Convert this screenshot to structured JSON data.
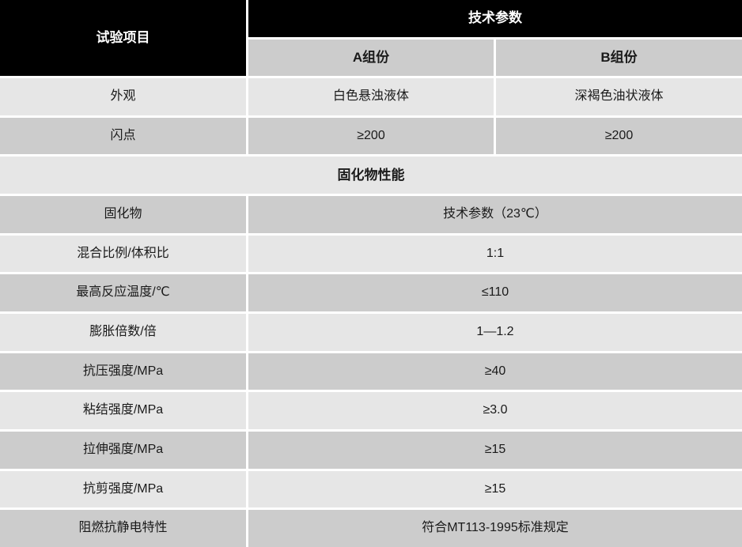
{
  "colors": {
    "header_bg": "#000000",
    "header_text": "#ffffff",
    "subheader_bg": "#cccccc",
    "row_light_bg": "#e6e6e6",
    "row_dark_bg": "#cccccc",
    "body_text": "#1a1a1a",
    "gap": "#ffffff"
  },
  "table": {
    "header": {
      "test_item": "试验项目",
      "tech_params": "技术参数",
      "component_a": "A组份",
      "component_b": "B组份"
    },
    "two_col_rows": [
      {
        "label": "外观",
        "value_a": "白色悬浊液体",
        "value_b": "深褐色油状液体"
      },
      {
        "label": "闪点",
        "value_a": "≥200",
        "value_b": "≥200"
      }
    ],
    "section_title": "固化物性能",
    "merged_rows": [
      {
        "label": "固化物",
        "value": "技术参数（23℃）"
      },
      {
        "label": "混合比例/体积比",
        "value": "1:1"
      },
      {
        "label": "最高反应温度/℃",
        "value": "≤110"
      },
      {
        "label": "膨胀倍数/倍",
        "value": "1—1.2"
      },
      {
        "label": "抗压强度/MPa",
        "value": "≥40"
      },
      {
        "label": "粘结强度/MPa",
        "value": "≥3.0"
      },
      {
        "label": "拉伸强度/MPa",
        "value": "≥15"
      },
      {
        "label": "抗剪强度/MPa",
        "value": "≥15"
      },
      {
        "label": "阻燃抗静电特性",
        "value": "符合MT113-1995标准规定"
      }
    ]
  }
}
